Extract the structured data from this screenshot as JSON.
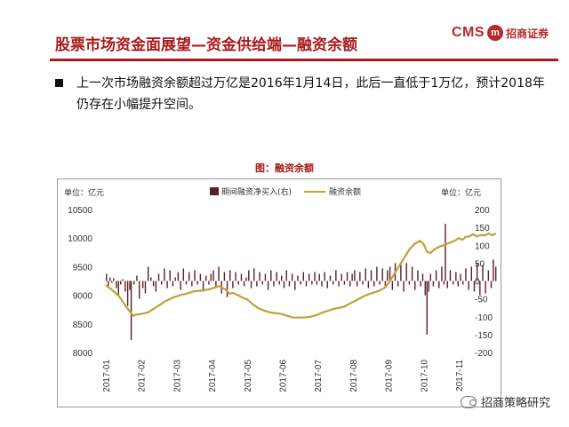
{
  "header": {
    "title": "股票市场资金面展望—资金供给端—融资余额",
    "logo_text": "CMS",
    "logo_seal": "m",
    "logo_cn": "招商证券"
  },
  "bullet": {
    "text": "上一次市场融资余额超过万亿是2016年1月14日，此后一直低于1万亿，预计2018年仍存在小幅提升空间。"
  },
  "footer": {
    "source": "招商策略研究"
  },
  "colors": {
    "brand_red": "#a81b1b",
    "bar": "#5a2025",
    "line": "#c2a03a"
  },
  "chart_data": {
    "type": "bar+line",
    "title": "图：融资余额",
    "left_unit": "单位：亿元",
    "right_unit": "单位：亿元",
    "legend": [
      "期间融资净买入(右)",
      "融资余额"
    ],
    "left_axis": {
      "ticks": [
        8000,
        8500,
        9000,
        9500,
        10000,
        10500
      ],
      "range": [
        8000,
        10500
      ]
    },
    "right_axis": {
      "ticks": [
        -200,
        -150,
        -100,
        -50,
        0,
        50,
        100,
        150,
        200
      ],
      "range": [
        -200,
        200
      ]
    },
    "categories": [
      "2017-01",
      "2017-02",
      "2017-03",
      "2017-04",
      "2017-05",
      "2017-06",
      "2017-07",
      "2017-08",
      "2017-09",
      "2017-10",
      "2017-11"
    ],
    "series": [
      {
        "name": "融资余额",
        "axis": "left",
        "points": [
          [
            0.0,
            9180
          ],
          [
            0.2,
            9080
          ],
          [
            0.35,
            9000
          ],
          [
            0.45,
            8920
          ],
          [
            0.55,
            8820
          ],
          [
            0.65,
            8740
          ],
          [
            0.78,
            8640
          ],
          [
            0.85,
            8660
          ],
          [
            0.95,
            8670
          ],
          [
            1.05,
            8680
          ],
          [
            1.2,
            8700
          ],
          [
            1.35,
            8760
          ],
          [
            1.5,
            8820
          ],
          [
            1.7,
            8900
          ],
          [
            1.9,
            8960
          ],
          [
            2.1,
            9000
          ],
          [
            2.3,
            9030
          ],
          [
            2.5,
            9070
          ],
          [
            2.7,
            9080
          ],
          [
            2.9,
            9100
          ],
          [
            3.0,
            9120
          ],
          [
            3.2,
            9160
          ],
          [
            3.4,
            9100
          ],
          [
            3.5,
            9030
          ],
          [
            3.6,
            9040
          ],
          [
            3.75,
            9000
          ],
          [
            3.9,
            8950
          ],
          [
            4.0,
            8930
          ],
          [
            4.15,
            8850
          ],
          [
            4.3,
            8780
          ],
          [
            4.45,
            8740
          ],
          [
            4.6,
            8710
          ],
          [
            4.75,
            8690
          ],
          [
            4.9,
            8680
          ],
          [
            5.0,
            8670
          ],
          [
            5.15,
            8640
          ],
          [
            5.3,
            8610
          ],
          [
            5.45,
            8610
          ],
          [
            5.6,
            8610
          ],
          [
            5.75,
            8620
          ],
          [
            5.9,
            8640
          ],
          [
            6.0,
            8660
          ],
          [
            6.15,
            8700
          ],
          [
            6.3,
            8730
          ],
          [
            6.45,
            8760
          ],
          [
            6.6,
            8780
          ],
          [
            6.75,
            8800
          ],
          [
            6.9,
            8850
          ],
          [
            7.0,
            8880
          ],
          [
            7.15,
            8930
          ],
          [
            7.3,
            8980
          ],
          [
            7.45,
            9020
          ],
          [
            7.6,
            9050
          ],
          [
            7.75,
            9080
          ],
          [
            7.9,
            9130
          ],
          [
            8.0,
            9200
          ],
          [
            8.15,
            9350
          ],
          [
            8.3,
            9500
          ],
          [
            8.45,
            9650
          ],
          [
            8.6,
            9800
          ],
          [
            8.75,
            9900
          ],
          [
            8.9,
            9950
          ],
          [
            9.0,
            9900
          ],
          [
            9.1,
            9760
          ],
          [
            9.2,
            9740
          ],
          [
            9.3,
            9800
          ],
          [
            9.45,
            9850
          ],
          [
            9.6,
            9880
          ],
          [
            9.75,
            9920
          ],
          [
            9.9,
            9960
          ],
          [
            10.0,
            10000
          ],
          [
            10.1,
            9970
          ],
          [
            10.2,
            10020
          ],
          [
            10.3,
            10030
          ],
          [
            10.4,
            10070
          ],
          [
            10.5,
            10030
          ],
          [
            10.6,
            10050
          ],
          [
            10.75,
            10050
          ],
          [
            10.85,
            10080
          ],
          [
            10.95,
            10050
          ],
          [
            11.05,
            10080
          ]
        ]
      },
      {
        "name": "期间融资净买入(右)",
        "axis": "right",
        "type": "bar",
        "points": [
          [
            0.02,
            20
          ],
          [
            0.07,
            -15
          ],
          [
            0.12,
            10
          ],
          [
            0.17,
            -5
          ],
          [
            0.22,
            8
          ],
          [
            0.3,
            -20
          ],
          [
            0.36,
            -40
          ],
          [
            0.42,
            -10
          ],
          [
            0.48,
            5
          ],
          [
            0.55,
            -30
          ],
          [
            0.62,
            -70
          ],
          [
            0.68,
            -25
          ],
          [
            0.72,
            -165
          ],
          [
            0.8,
            -10
          ],
          [
            0.88,
            15
          ],
          [
            0.95,
            -50
          ],
          [
            1.05,
            -20
          ],
          [
            1.12,
            -35
          ],
          [
            1.2,
            40
          ],
          [
            1.28,
            10
          ],
          [
            1.35,
            -15
          ],
          [
            1.42,
            -30
          ],
          [
            1.5,
            20
          ],
          [
            1.58,
            -10
          ],
          [
            1.66,
            35
          ],
          [
            1.74,
            -20
          ],
          [
            1.82,
            30
          ],
          [
            1.9,
            -15
          ],
          [
            1.97,
            10
          ],
          [
            2.05,
            25
          ],
          [
            2.12,
            -25
          ],
          [
            2.2,
            35
          ],
          [
            2.28,
            -10
          ],
          [
            2.36,
            25
          ],
          [
            2.44,
            -15
          ],
          [
            2.52,
            30
          ],
          [
            2.6,
            -10
          ],
          [
            2.68,
            20
          ],
          [
            2.76,
            -30
          ],
          [
            2.84,
            15
          ],
          [
            2.92,
            -10
          ],
          [
            2.98,
            20
          ],
          [
            3.05,
            30
          ],
          [
            3.12,
            -20
          ],
          [
            3.2,
            40
          ],
          [
            3.28,
            -35
          ],
          [
            3.36,
            25
          ],
          [
            3.44,
            -45
          ],
          [
            3.52,
            30
          ],
          [
            3.6,
            -20
          ],
          [
            3.68,
            25
          ],
          [
            3.76,
            -10
          ],
          [
            3.84,
            20
          ],
          [
            3.92,
            -15
          ],
          [
            3.98,
            10
          ],
          [
            4.05,
            30
          ],
          [
            4.12,
            -20
          ],
          [
            4.2,
            35
          ],
          [
            4.28,
            -15
          ],
          [
            4.36,
            25
          ],
          [
            4.44,
            -10
          ],
          [
            4.52,
            20
          ],
          [
            4.6,
            -25
          ],
          [
            4.68,
            30
          ],
          [
            4.76,
            -15
          ],
          [
            4.84,
            25
          ],
          [
            4.92,
            -10
          ],
          [
            4.98,
            15
          ],
          [
            5.05,
            -20
          ],
          [
            5.12,
            30
          ],
          [
            5.2,
            -15
          ],
          [
            5.28,
            20
          ],
          [
            5.36,
            -25
          ],
          [
            5.44,
            15
          ],
          [
            5.52,
            -10
          ],
          [
            5.6,
            25
          ],
          [
            5.68,
            -15
          ],
          [
            5.76,
            20
          ],
          [
            5.84,
            -10
          ],
          [
            5.92,
            25
          ],
          [
            5.98,
            -10
          ],
          [
            6.05,
            20
          ],
          [
            6.12,
            -15
          ],
          [
            6.2,
            25
          ],
          [
            6.28,
            -20
          ],
          [
            6.36,
            15
          ],
          [
            6.44,
            -10
          ],
          [
            6.52,
            30
          ],
          [
            6.6,
            -15
          ],
          [
            6.68,
            20
          ],
          [
            6.76,
            -10
          ],
          [
            6.84,
            25
          ],
          [
            6.92,
            -15
          ],
          [
            6.98,
            20
          ],
          [
            7.05,
            30
          ],
          [
            7.12,
            -15
          ],
          [
            7.2,
            25
          ],
          [
            7.28,
            -10
          ],
          [
            7.36,
            35
          ],
          [
            7.44,
            -20
          ],
          [
            7.52,
            30
          ],
          [
            7.6,
            -15
          ],
          [
            7.68,
            40
          ],
          [
            7.76,
            -10
          ],
          [
            7.84,
            35
          ],
          [
            7.92,
            -20
          ],
          [
            7.98,
            30
          ],
          [
            8.05,
            40
          ],
          [
            8.12,
            -25
          ],
          [
            8.2,
            50
          ],
          [
            8.28,
            -15
          ],
          [
            8.36,
            45
          ],
          [
            8.44,
            -30
          ],
          [
            8.52,
            50
          ],
          [
            8.6,
            -10
          ],
          [
            8.68,
            40
          ],
          [
            8.76,
            -25
          ],
          [
            8.84,
            30
          ],
          [
            8.92,
            -15
          ],
          [
            8.98,
            20
          ],
          [
            9.05,
            -40
          ],
          [
            9.1,
            -150
          ],
          [
            9.15,
            -30
          ],
          [
            9.2,
            20
          ],
          [
            9.28,
            -15
          ],
          [
            9.36,
            30
          ],
          [
            9.44,
            -20
          ],
          [
            9.52,
            40
          ],
          [
            9.58,
            -10
          ],
          [
            9.62,
            160
          ],
          [
            9.68,
            -20
          ],
          [
            9.76,
            30
          ],
          [
            9.84,
            -10
          ],
          [
            9.92,
            25
          ],
          [
            9.98,
            -15
          ],
          [
            10.05,
            20
          ],
          [
            10.12,
            -10
          ],
          [
            10.2,
            35
          ],
          [
            10.28,
            -25
          ],
          [
            10.36,
            40
          ],
          [
            10.44,
            -30
          ],
          [
            10.52,
            50
          ],
          [
            10.6,
            -40
          ],
          [
            10.68,
            45
          ],
          [
            10.76,
            -35
          ],
          [
            10.84,
            30
          ],
          [
            10.92,
            -20
          ],
          [
            10.98,
            60
          ],
          [
            11.05,
            40
          ]
        ]
      }
    ]
  }
}
